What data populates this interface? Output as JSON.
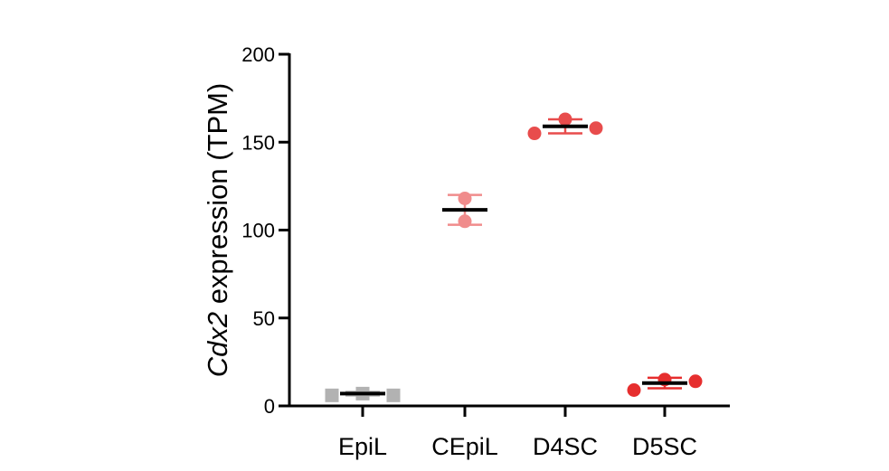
{
  "chart_data": {
    "type": "scatter",
    "title": "",
    "ylabel_italic": "Cdx2",
    "ylabel_rest": " expression (TPM)",
    "xlabel": "",
    "categories": [
      "EpiL",
      "CEpiL",
      "D4SC",
      "D5SC"
    ],
    "ylim": [
      0,
      200
    ],
    "yticks": [
      0,
      50,
      100,
      150,
      200
    ],
    "grid": false,
    "legend": "none",
    "series": [
      {
        "category": "EpiL",
        "marker": "square",
        "color": "#b2b2b2",
        "points": [
          6,
          7,
          6
        ],
        "mean": 7,
        "sd": 1
      },
      {
        "category": "CEpiL",
        "marker": "circle",
        "color": "#f08c8c",
        "points": [
          118,
          105
        ],
        "mean": 111.5,
        "sd": 8.5
      },
      {
        "category": "D4SC",
        "marker": "circle",
        "color": "#e84c4c",
        "points": [
          155,
          163,
          158
        ],
        "mean": 159,
        "sd": 4
      },
      {
        "category": "D5SC",
        "marker": "circle",
        "color": "#e62e2e",
        "points": [
          9,
          15,
          14
        ],
        "mean": 13,
        "sd": 3
      }
    ]
  }
}
